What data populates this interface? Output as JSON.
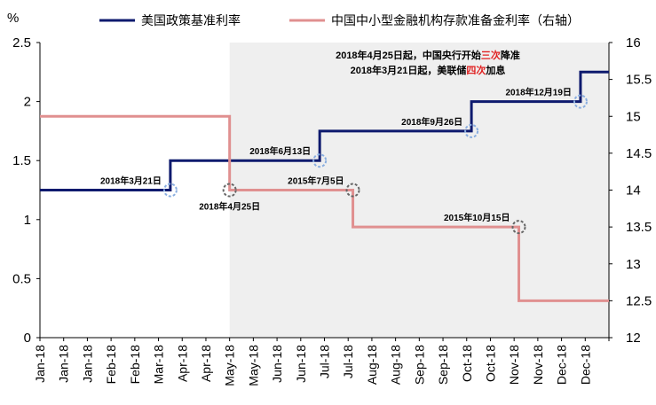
{
  "chart_data": {
    "type": "line",
    "y_unit_label": "%",
    "legend": [
      {
        "name": "美国政策基准利率",
        "color": "#0e1a6e"
      },
      {
        "name": "中国中小型金融机构存款准备金利率（右轴）",
        "color": "#e09090"
      }
    ],
    "x_tick_labels": [
      "Jan-18",
      "Jan-18",
      "Jan-18",
      "Feb-18",
      "Feb-18",
      "Mar-18",
      "Apr-18",
      "Apr-18",
      "May-18",
      "May-18",
      "Jun-18",
      "Jun-18",
      "Jul-18",
      "Jul-18",
      "Aug-18",
      "Aug-18",
      "Sep-18",
      "Sep-18",
      "Oct-18",
      "Oct-18",
      "Nov-18",
      "Nov-18",
      "Dec-18",
      "Dec-18"
    ],
    "y_left": {
      "min": 0,
      "max": 2.5,
      "ticks": [
        0,
        0.5,
        1,
        1.5,
        2,
        2.5
      ],
      "tick_labels": [
        "0",
        "0.5",
        "1",
        "1.5",
        "2",
        "2.5"
      ]
    },
    "y_right": {
      "min": 12,
      "max": 16,
      "ticks": [
        12,
        12.5,
        13,
        13.5,
        14,
        14.5,
        15,
        15.5,
        16
      ],
      "tick_labels": [
        "12",
        "12.5",
        "13",
        "13.5",
        "14",
        "14.5",
        "15",
        "15.5",
        "16"
      ]
    },
    "series": [
      {
        "name": "美国政策基准利率",
        "axis": "left",
        "color": "#0e1a6e",
        "steps": [
          {
            "x": 0,
            "y": 1.25
          },
          {
            "x": 5.5,
            "y": 1.5
          },
          {
            "x": 11.8,
            "y": 1.75
          },
          {
            "x": 18.2,
            "y": 2.0
          },
          {
            "x": 22.8,
            "y": 2.25
          },
          {
            "x": 24,
            "y": 2.25
          }
        ]
      },
      {
        "name": "中国中小型金融机构存款准备金利率（右轴）",
        "axis": "right",
        "color": "#e09090",
        "steps": [
          {
            "x": 0,
            "y": 15.0
          },
          {
            "x": 8.0,
            "y": 14.0
          },
          {
            "x": 13.2,
            "y": 13.5
          },
          {
            "x": 20.2,
            "y": 12.5
          },
          {
            "x": 24,
            "y": 12.5
          }
        ]
      }
    ],
    "shaded_region": {
      "x_start": 8.0,
      "x_end": 24,
      "color": "#efefef"
    },
    "annotations": [
      {
        "text": "2018年3月21日",
        "x": 5.5,
        "y": 1.25,
        "axis": "left",
        "side": "left"
      },
      {
        "text": "2018年4月25日",
        "x": 8.0,
        "y": 14.0,
        "axis": "right",
        "side": "below"
      },
      {
        "text": "2018年6月13日",
        "x": 11.8,
        "y": 1.5,
        "axis": "left",
        "side": "left"
      },
      {
        "text": "2018年9月26日",
        "x": 18.2,
        "y": 1.75,
        "axis": "left",
        "side": "left"
      },
      {
        "text": "2018年12月19日",
        "x": 22.8,
        "y": 2.0,
        "axis": "left",
        "side": "left"
      },
      {
        "text": "2015年7月5日",
        "x": 13.2,
        "y": 14.0,
        "axis": "right",
        "side": "left"
      },
      {
        "text": "2015年10月15日",
        "x": 20.2,
        "y": 13.5,
        "axis": "right",
        "side": "left"
      }
    ],
    "note_lines": [
      [
        {
          "t": "2018年4月25日起，中国央行开始",
          "c": "#000000"
        },
        {
          "t": "三次",
          "c": "#e02020"
        },
        {
          "t": "降准",
          "c": "#000000"
        }
      ],
      [
        {
          "t": "2018年3月21日起，美联储",
          "c": "#000000"
        },
        {
          "t": "四次",
          "c": "#e02020"
        },
        {
          "t": "加息",
          "c": "#000000"
        }
      ]
    ],
    "grid": false
  }
}
